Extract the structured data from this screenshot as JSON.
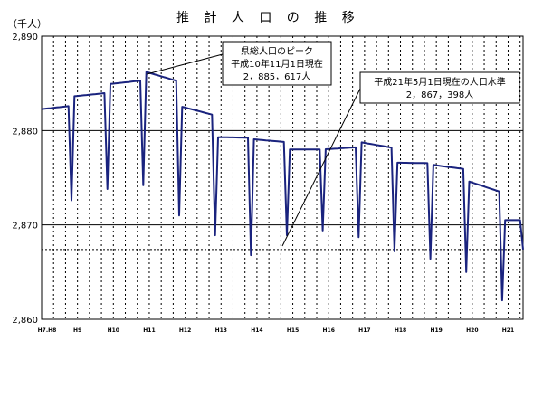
{
  "chart_data": {
    "type": "line",
    "title": "推 計 人 口 の 推 移",
    "unit_label": "（千人）",
    "ylabel": "",
    "xlabel": "",
    "ylim": [
      2860,
      2890
    ],
    "y_ticks": [
      "2,860",
      "2,870",
      "2,880",
      "2,890"
    ],
    "y_tick_values": [
      2860,
      2870,
      2880,
      2890
    ],
    "x_ticks": [
      "H7.H8",
      "H9",
      "H10",
      "H11",
      "H12",
      "H13",
      "H14",
      "H15",
      "H16",
      "H17",
      "H18",
      "H19",
      "H20",
      "H21"
    ],
    "x_tick_month_index": [
      0,
      12,
      24,
      36,
      48,
      60,
      72,
      84,
      96,
      108,
      120,
      132,
      144,
      156
    ],
    "x_range_months": [
      0,
      161
    ],
    "grid_horizontal": true,
    "grid_vertical_dashed": true,
    "reference_line_value": 2867.398,
    "line_color": "#1a237e",
    "annual_baseline": [
      2882.2,
      2883.6,
      2884.9,
      2886.3,
      2882.6,
      2879.3,
      2879.1,
      2878.0,
      2878.0,
      2878.8,
      2876.6,
      2876.4,
      2874.7,
      2870.5
    ],
    "annual_dip": [
      2870.8,
      2872.6,
      2873.8,
      2874.2,
      2871.0,
      2868.9,
      2866.8,
      2868.9,
      2869.4,
      2868.7,
      2867.2,
      2866.4,
      2865.0,
      2862.0
    ],
    "last_value": 2867.398,
    "annotations": [
      {
        "lines": [
          "県総人口のピーク",
          "平成10年11月1日現在",
          "2，885，617人"
        ]
      },
      {
        "lines": [
          "平成21年5月1日現在の人口水準",
          "2，867，398人"
        ]
      }
    ]
  }
}
